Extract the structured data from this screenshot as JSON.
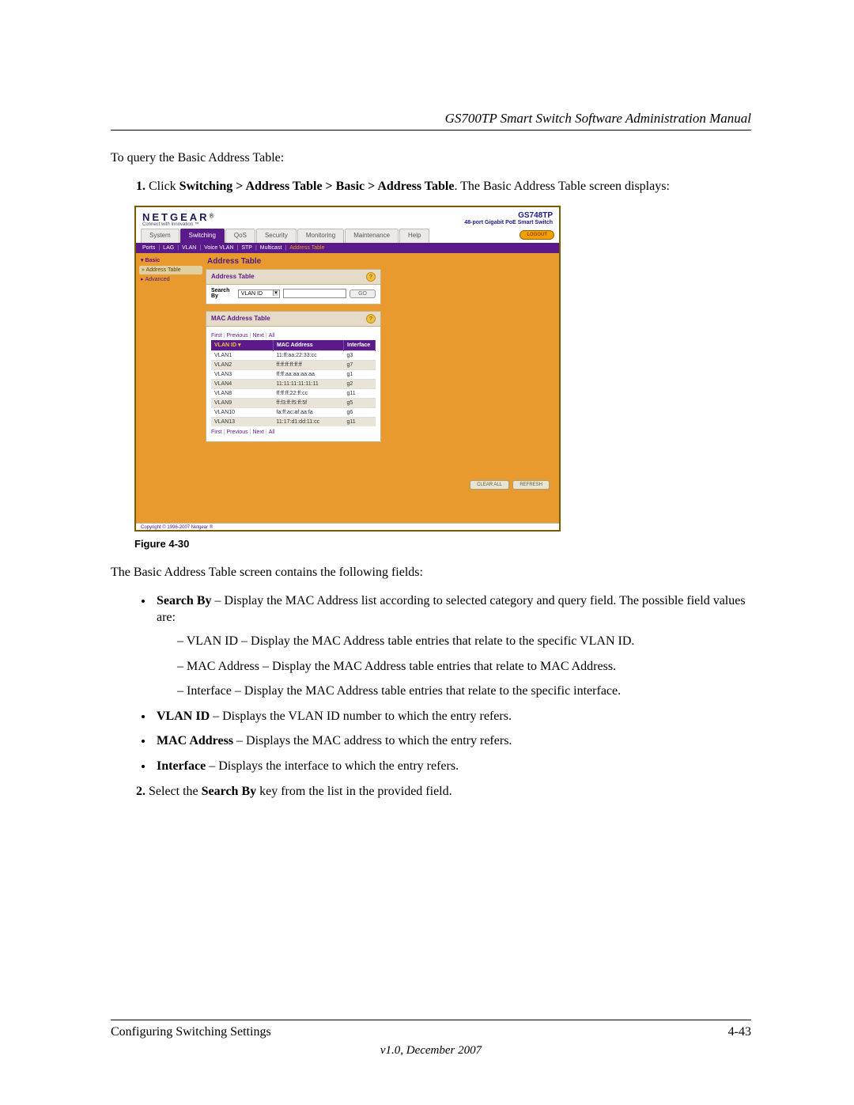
{
  "page": {
    "header_title": "GS700TP Smart Switch Software Administration Manual",
    "intro": "To query the Basic Address Table:",
    "step1_a": "Click ",
    "step1_b": "Switching > Address Table > Basic > Address Table",
    "step1_c": ". The Basic Address Table screen displays:",
    "fig_caption": "Figure 4-30",
    "after_fig": "The Basic Address Table screen contains the following fields:",
    "bullet_searchby_label": "Search By",
    "bullet_searchby_text": " – Display the MAC Address list according to selected category and query field. The possible field values are:",
    "dash_vlan": "VLAN ID – Display the MAC Address table entries that relate to the specific VLAN ID.",
    "dash_mac": "MAC Address – Display the MAC Address table entries that relate to MAC Address.",
    "dash_iface": "Interface – Display the MAC Address table entries that relate to the specific interface.",
    "bullet_vlan_label": "VLAN ID",
    "bullet_vlan_text": " – Displays the VLAN ID number to which the entry refers.",
    "bullet_mac_label": "MAC Address",
    "bullet_mac_text": " – Displays the MAC address to which the entry refers.",
    "bullet_iface_label": "Interface",
    "bullet_iface_text": " – Displays the interface to which the entry refers.",
    "step2_a": "Select the ",
    "step2_b": "Search By",
    "step2_c": " key from the list in the provided field.",
    "footer_left": "Configuring Switching Settings",
    "footer_right": "4-43",
    "footer_ver": "v1.0, December 2007"
  },
  "shot": {
    "brand": "NETGEAR",
    "brand_reg": "®",
    "brand_sub": "Connect with Innovation ™",
    "model": "GS748TP",
    "model_sub": "48-port Gigabit PoE Smart Switch",
    "tabs": [
      "System",
      "Switching",
      "QoS",
      "Security",
      "Monitoring",
      "Maintenance",
      "Help"
    ],
    "active_tab_index": 1,
    "logout": "LOGOUT",
    "subnav": [
      "Ports",
      "LAG",
      "VLAN",
      "Voice VLAN",
      "STP",
      "Multicast",
      "Address Table"
    ],
    "subnav_sel_index": 6,
    "side_hdr1": "Basic",
    "side_sel": "» Address Table",
    "side_hdr2": "Advanced",
    "main_title": "Address Table",
    "panel1_title": "Address Table",
    "search_label": "Search By",
    "search_select": "VLAN ID",
    "go": "GO",
    "panel2_title": "MAC Address Table",
    "pager_items": [
      "First",
      "Previous",
      "Next",
      "All"
    ],
    "cols": [
      "VLAN ID ▾",
      "MAC Address",
      "Interface"
    ],
    "rows": [
      {
        "v": "VLAN1",
        "m": "11:ff:aa:22:33:cc",
        "i": "g3"
      },
      {
        "v": "VLAN2",
        "m": "ff:ff:ff:ff:ff:ff",
        "i": "g7"
      },
      {
        "v": "VLAN3",
        "m": "ff:ff:aa:aa:aa:aa",
        "i": "g1"
      },
      {
        "v": "VLAN4",
        "m": "11:11:11:11:11:11",
        "i": "g2"
      },
      {
        "v": "VLAN8",
        "m": "ff:ff:ff:22:ff:cc",
        "i": "g11"
      },
      {
        "v": "VLAN9",
        "m": "ff:f3:ff:f5:ff:5f",
        "i": "g5"
      },
      {
        "v": "VLAN10",
        "m": "fa:ff:ac:af:aa:fa",
        "i": "g6"
      },
      {
        "v": "VLAN13",
        "m": "11:17:d1:dd:11:cc",
        "i": "g11"
      }
    ],
    "foot_btn1": "CLEAR ALL",
    "foot_btn2": "REFRESH",
    "copyright": "Copyright © 1996-2007 Netgear ®"
  },
  "colors": {
    "purple": "#5a1a8a",
    "orange_body": "#e89a2e",
    "orange_accent": "#f0a000"
  }
}
